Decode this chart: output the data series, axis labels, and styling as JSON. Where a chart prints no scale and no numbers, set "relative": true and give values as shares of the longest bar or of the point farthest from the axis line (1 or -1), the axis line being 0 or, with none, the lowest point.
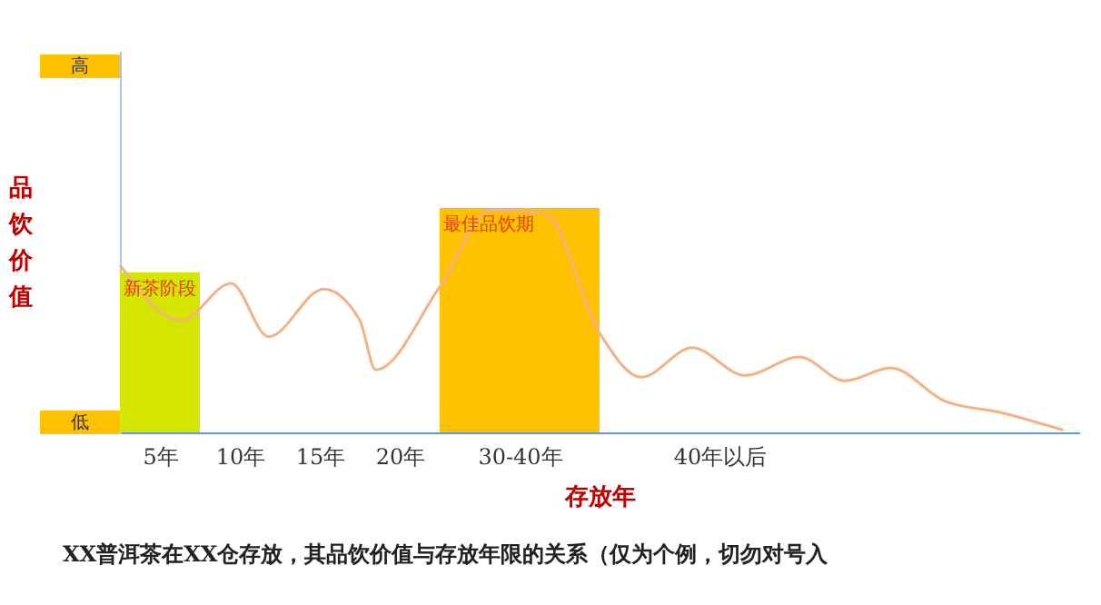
{
  "chart_data": {
    "type": "line",
    "relative": true,
    "ylabel": "品饮价值",
    "xlabel": "存放年",
    "xlim": [
      2.5,
      62.5
    ],
    "xticks": [
      {
        "value": 5,
        "label": "5年"
      },
      {
        "value": 10,
        "label": "10年"
      },
      {
        "value": 15,
        "label": "15年"
      },
      {
        "value": 20,
        "label": "20年"
      },
      {
        "value": 27.5,
        "label": "30-40年"
      },
      {
        "value": 40,
        "label": "40年以后"
      }
    ],
    "grid": false,
    "series": [
      {
        "type": "bar",
        "color": "#d4e600",
        "x": [
          5
        ],
        "values": [
          0.713
        ]
      },
      {
        "type": "bar",
        "color": "#ffc000",
        "x": [
          25,
          30
        ],
        "values": [
          1,
          1
        ]
      },
      {
        "color": "#f4b183",
        "x": [
          2.5,
          6.35,
          9.45,
          11.8,
          15.25,
          17.5,
          18.5,
          22.5,
          25.7,
          29.1,
          32.5,
          35.1,
          38.3,
          41.6,
          45,
          47.85,
          50.7,
          54.1,
          57.5,
          61.5
        ],
        "values": [
          0.746,
          0.5,
          0.664,
          0.426,
          0.639,
          0.5,
          0.279,
          0.648,
          0.992,
          0.975,
          0.443,
          0.246,
          0.377,
          0.254,
          0.336,
          0.23,
          0.287,
          0.139,
          0.09,
          0.01
        ]
      }
    ],
    "annotations": [
      {
        "text": "新茶阶段",
        "x": 5,
        "y": 0.713
      },
      {
        "text": "最佳品饮期",
        "x": 25,
        "y": 1
      },
      "高",
      "低",
      "XX普洱茶在XX仓存放，其品饮价值与存放年限的关系（仅为个例，切勿对号入"
    ]
  }
}
